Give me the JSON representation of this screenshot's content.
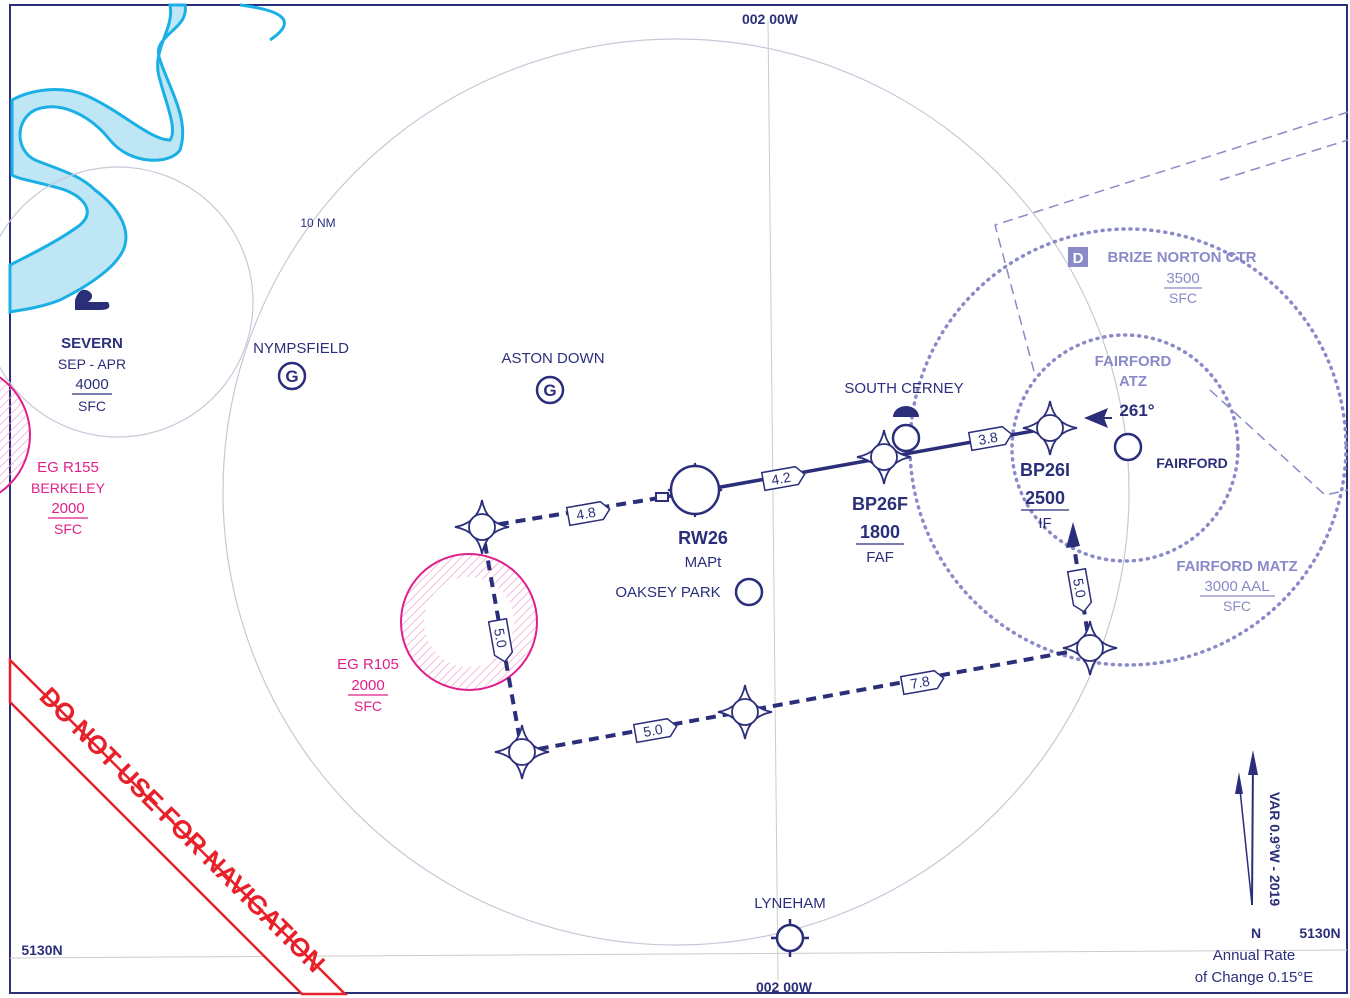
{
  "grid_labels": {
    "top": "002 00W",
    "bottom": "002 00W",
    "left": "5130N",
    "right": "5130N"
  },
  "range_ring": "10 NM",
  "airspaces": [
    {
      "name": "SEVERN",
      "lines": [
        "SEP - APR",
        "4000",
        "SFC"
      ]
    },
    {
      "name": "EG R155",
      "lines": [
        "BERKELEY",
        "2000",
        "SFC"
      ]
    },
    {
      "name": "EG R105",
      "lines": [
        "2000",
        "SFC"
      ]
    },
    {
      "class": "D",
      "name": "BRIZE NORTON CTR",
      "lines": [
        "3500",
        "SFC"
      ]
    },
    {
      "name": "FAIRFORD",
      "lines": [
        "ATZ"
      ]
    },
    {
      "name": "FAIRFORD MATZ",
      "lines": [
        "3000 AAL",
        "SFC"
      ]
    }
  ],
  "places": [
    "NYMPSFIELD",
    "ASTON DOWN",
    "SOUTH CERNEY",
    "OAKSEY PARK",
    "LYNEHAM",
    "FAIRFORD"
  ],
  "waypoints": [
    {
      "name": "RW26",
      "role": "MAPt"
    },
    {
      "name": "BP26F",
      "altitude": "1800",
      "role": "FAF"
    },
    {
      "name": "BP26I",
      "altitude": "2500",
      "role": "IF"
    }
  ],
  "leg_distances": [
    "4.8",
    "4.2",
    "3.8",
    "5.0",
    "5.0",
    "7.8",
    "5.0"
  ],
  "inbound_course": "261°",
  "variation": {
    "text": "VAR 0.9°W - 2019",
    "north": "N",
    "annual_rate": [
      "Annual Rate",
      "of Change 0.15°E"
    ]
  },
  "warning": "DO NOT USE FOR NAVIGATION"
}
